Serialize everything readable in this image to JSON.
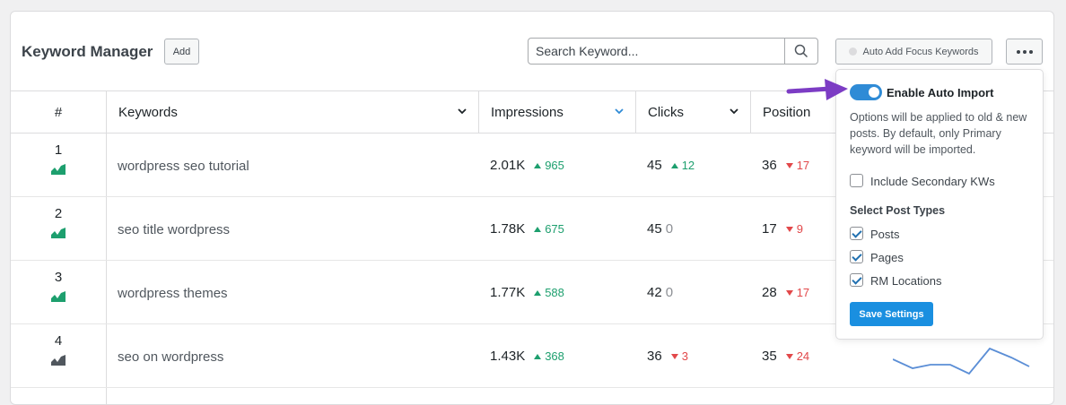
{
  "header": {
    "title": "Keyword Manager",
    "add_label": "Add",
    "search_placeholder": "Search Keyword...",
    "auto_add_label": "Auto Add Focus Keywords"
  },
  "columns": {
    "num": "#",
    "keywords": "Keywords",
    "impressions": "Impressions",
    "clicks": "Clicks",
    "position": "Position"
  },
  "rows": [
    {
      "num": "1",
      "keyword": "wordpress seo tutorial",
      "impressions": "2.01K",
      "impressions_change": "965",
      "impressions_dir": "up",
      "clicks": "45",
      "clicks_change": "12",
      "clicks_dir": "up",
      "position": "36",
      "position_change": "17",
      "position_dir": "down",
      "trend_color": "#1d9f6e"
    },
    {
      "num": "2",
      "keyword": "seo title wordpress",
      "impressions": "1.78K",
      "impressions_change": "675",
      "impressions_dir": "up",
      "clicks": "45",
      "clicks_change": "0",
      "clicks_dir": "none",
      "position": "17",
      "position_change": "9",
      "position_dir": "down",
      "trend_color": "#1d9f6e"
    },
    {
      "num": "3",
      "keyword": "wordpress themes",
      "impressions": "1.77K",
      "impressions_change": "588",
      "impressions_dir": "up",
      "clicks": "42",
      "clicks_change": "0",
      "clicks_dir": "none",
      "position": "28",
      "position_change": "17",
      "position_dir": "down",
      "trend_color": "#1d9f6e"
    },
    {
      "num": "4",
      "keyword": "seo on wordpress",
      "impressions": "1.43K",
      "impressions_change": "368",
      "impressions_dir": "up",
      "clicks": "36",
      "clicks_change": "3",
      "clicks_dir": "down",
      "position": "35",
      "position_change": "24",
      "position_dir": "down",
      "trend_color": "#50575e"
    }
  ],
  "popup": {
    "toggle_label": "Enable Auto Import",
    "toggle_on": true,
    "description": "Options will be applied to old & new posts. By default, only Primary keyword will be imported.",
    "secondary_label": "Include Secondary KWs",
    "post_types_title": "Select Post Types",
    "post_types": [
      "Posts",
      "Pages",
      "RM Locations"
    ],
    "save_label": "Save Settings"
  },
  "colors": {
    "accent": "#2f8bd6",
    "up": "#1d9f6e",
    "down": "#e2484a",
    "arrow": "#7c3cc4"
  }
}
